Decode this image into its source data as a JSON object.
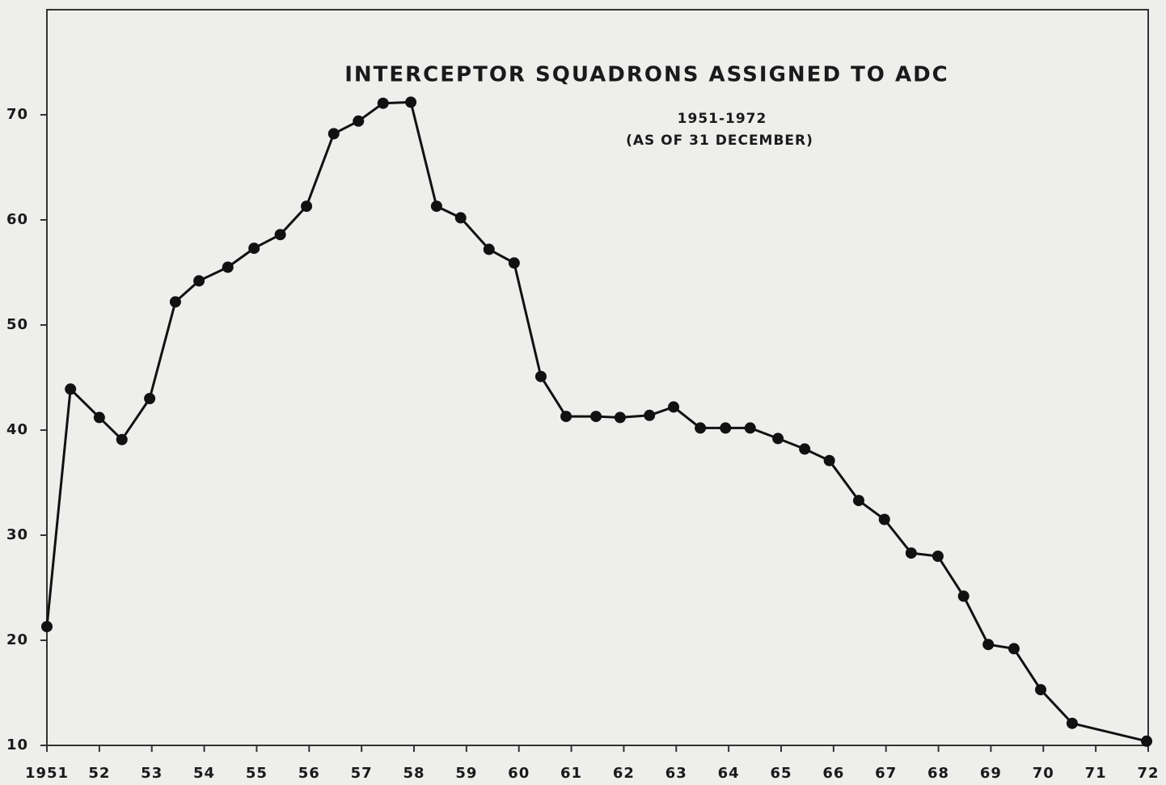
{
  "chart_data": {
    "type": "line",
    "title": "INTERCEPTOR SQUADRONS ASSIGNED TO ADC",
    "subtitle": [
      "1951-1972",
      "(AS OF 31 DECEMBER)"
    ],
    "x": [
      1951.0,
      1951.45,
      1952.0,
      1952.43,
      1952.96,
      1953.45,
      1953.9,
      1954.45,
      1954.95,
      1955.45,
      1955.95,
      1956.47,
      1956.94,
      1957.41,
      1957.94,
      1958.43,
      1958.89,
      1959.43,
      1959.91,
      1960.42,
      1960.9,
      1961.47,
      1961.93,
      1962.49,
      1962.95,
      1963.46,
      1963.94,
      1964.41,
      1964.94,
      1965.45,
      1965.92,
      1966.48,
      1966.97,
      1967.48,
      1967.99,
      1968.48,
      1968.95,
      1969.44,
      1969.95,
      1970.55,
      1971.97
    ],
    "values": [
      21.3,
      43.9,
      41.2,
      39.1,
      43.0,
      52.2,
      54.2,
      55.5,
      57.3,
      58.6,
      61.3,
      68.2,
      69.4,
      71.1,
      71.2,
      61.3,
      60.2,
      57.2,
      55.9,
      45.1,
      41.3,
      41.3,
      41.2,
      41.4,
      42.2,
      40.2,
      40.2,
      40.2,
      39.2,
      38.2,
      37.1,
      33.3,
      31.5,
      28.3,
      28.0,
      24.2,
      19.6,
      19.2,
      15.3,
      12.1,
      10.4
    ],
    "color": "#111111",
    "xlim": [
      1951,
      1972
    ],
    "xticks": [
      {
        "value": 1951,
        "label": "1951"
      },
      {
        "value": 1952,
        "label": "52"
      },
      {
        "value": 1953,
        "label": "53"
      },
      {
        "value": 1954,
        "label": "54"
      },
      {
        "value": 1955,
        "label": "55"
      },
      {
        "value": 1956,
        "label": "56"
      },
      {
        "value": 1957,
        "label": "57"
      },
      {
        "value": 1958,
        "label": "58"
      },
      {
        "value": 1959,
        "label": "59"
      },
      {
        "value": 1960,
        "label": "60"
      },
      {
        "value": 1961,
        "label": "61"
      },
      {
        "value": 1962,
        "label": "62"
      },
      {
        "value": 1963,
        "label": "63"
      },
      {
        "value": 1964,
        "label": "64"
      },
      {
        "value": 1965,
        "label": "65"
      },
      {
        "value": 1966,
        "label": "66"
      },
      {
        "value": 1967,
        "label": "67"
      },
      {
        "value": 1968,
        "label": "68"
      },
      {
        "value": 1969,
        "label": "69"
      },
      {
        "value": 1970,
        "label": "70"
      },
      {
        "value": 1971,
        "label": "71"
      },
      {
        "value": 1972,
        "label": "72"
      }
    ],
    "ylim": [
      10,
      80
    ],
    "yticks": [
      10,
      20,
      30,
      40,
      50,
      60,
      70
    ],
    "grid": false
  }
}
